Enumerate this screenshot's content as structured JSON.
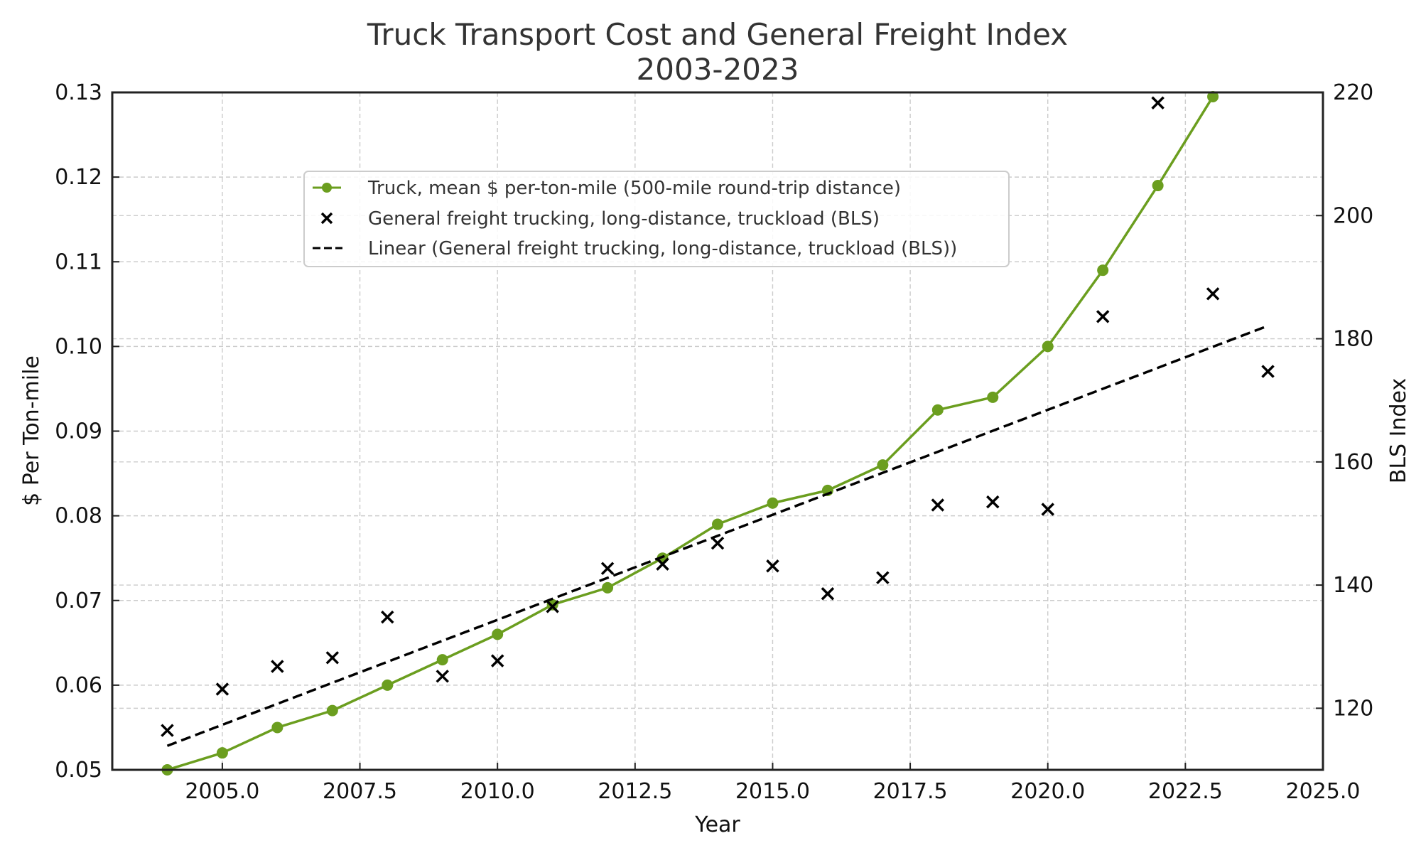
{
  "chart_data": {
    "type": "line",
    "title": "Truck Transport Cost and General Freight Index",
    "subtitle": "2003-2023",
    "xlabel": "Year",
    "ylabel": "$ Per Ton-mile",
    "y2label": "BLS Index",
    "xlim": [
      2003,
      2025
    ],
    "ylim": [
      0.05,
      0.13
    ],
    "y2lim": [
      110,
      220
    ],
    "grid": true,
    "legend_position": "upper-center",
    "x_ticks": [
      2005.0,
      2007.5,
      2010.0,
      2012.5,
      2015.0,
      2017.5,
      2020.0,
      2022.5,
      2025.0
    ],
    "x_tick_labels": [
      "2005.0",
      "2007.5",
      "2010.0",
      "2012.5",
      "2015.0",
      "2017.5",
      "2020.0",
      "2022.5",
      "2025.0"
    ],
    "y_ticks": [
      0.05,
      0.06,
      0.07,
      0.08,
      0.09,
      0.1,
      0.11,
      0.12,
      0.13
    ],
    "y_tick_labels": [
      "0.05",
      "0.06",
      "0.07",
      "0.08",
      "0.09",
      "0.10",
      "0.11",
      "0.12",
      "0.13"
    ],
    "y2_ticks": [
      120,
      140,
      160,
      180,
      200,
      220
    ],
    "y2_tick_labels": [
      "120",
      "140",
      "160",
      "180",
      "200",
      "220"
    ],
    "series": [
      {
        "name": "Truck, mean $ per-ton-mile (500-mile round-trip distance)",
        "axis": "left",
        "style": "line-marker-circle",
        "color": "#6b9e1f",
        "x": [
          2004,
          2005,
          2006,
          2007,
          2008,
          2009,
          2010,
          2011,
          2012,
          2013,
          2014,
          2015,
          2016,
          2017,
          2018,
          2019,
          2020,
          2021,
          2022,
          2023
        ],
        "values": [
          0.05,
          0.052,
          0.055,
          0.057,
          0.06,
          0.063,
          0.066,
          0.0695,
          0.0715,
          0.075,
          0.079,
          0.0815,
          0.083,
          0.086,
          0.0925,
          0.094,
          0.1,
          0.109,
          0.119,
          0.1295
        ]
      },
      {
        "name": "General freight trucking, long-distance, truckload (BLS)",
        "axis": "right",
        "style": "scatter-x",
        "color": "#000000",
        "x": [
          2004,
          2005,
          2006,
          2007,
          2008,
          2009,
          2010,
          2011,
          2012,
          2013,
          2014,
          2015,
          2016,
          2017,
          2018,
          2019,
          2020,
          2021,
          2022,
          2023,
          2024
        ],
        "values": [
          116.4,
          123.1,
          126.8,
          128.2,
          134.8,
          125.2,
          127.7,
          136.5,
          142.7,
          143.4,
          146.8,
          143.1,
          138.6,
          141.2,
          153.0,
          153.5,
          152.3,
          183.6,
          218.3,
          187.3,
          174.7
        ]
      },
      {
        "name": "Linear (General freight trucking, long-distance, truckload (BLS))",
        "axis": "right",
        "style": "dashed-line",
        "color": "#000000",
        "x": [
          2004,
          2024
        ],
        "values": [
          113.9,
          182.1
        ]
      }
    ]
  }
}
